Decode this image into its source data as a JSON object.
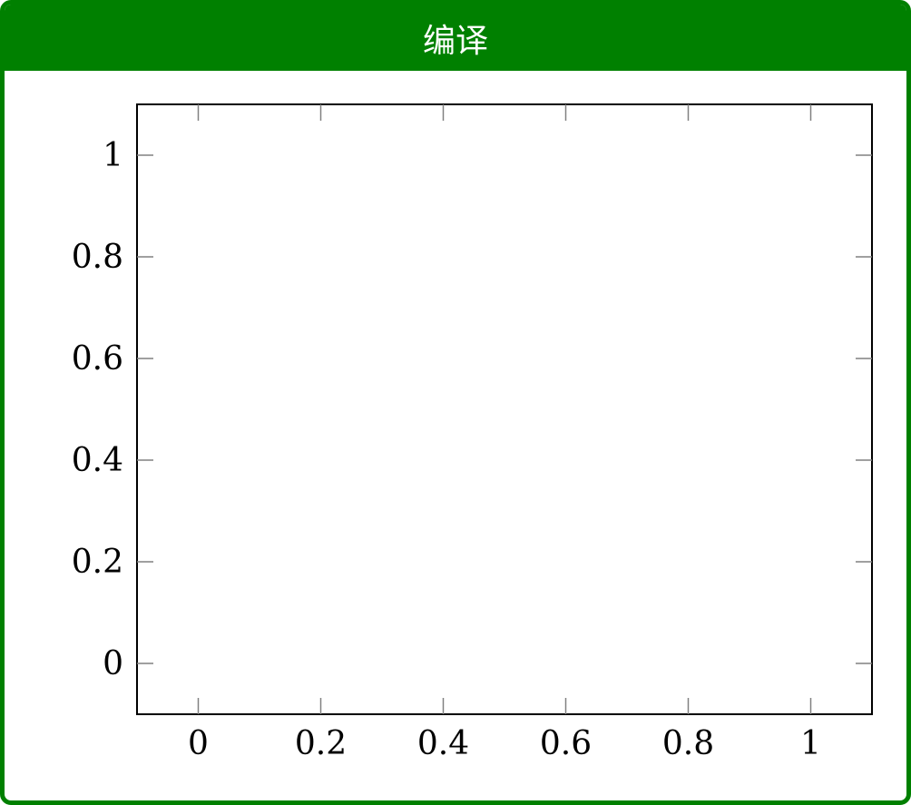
{
  "header": {
    "title": "编译",
    "color": "#008000"
  },
  "chart_data": {
    "type": "scatter",
    "title": "",
    "xlabel": "",
    "ylabel": "",
    "xlim": [
      -0.1,
      1.1
    ],
    "ylim": [
      -0.1,
      1.1
    ],
    "xticks": [
      0,
      0.2,
      0.4,
      0.6,
      0.8,
      1
    ],
    "yticks": [
      0,
      0.2,
      0.4,
      0.6,
      0.8,
      1
    ],
    "xtick_labels": [
      "0",
      "0.2",
      "0.4",
      "0.6",
      "0.8",
      "1"
    ],
    "ytick_labels": [
      "0",
      "0.2",
      "0.4",
      "0.6",
      "0.8",
      "1"
    ],
    "series": [],
    "grid": false
  }
}
